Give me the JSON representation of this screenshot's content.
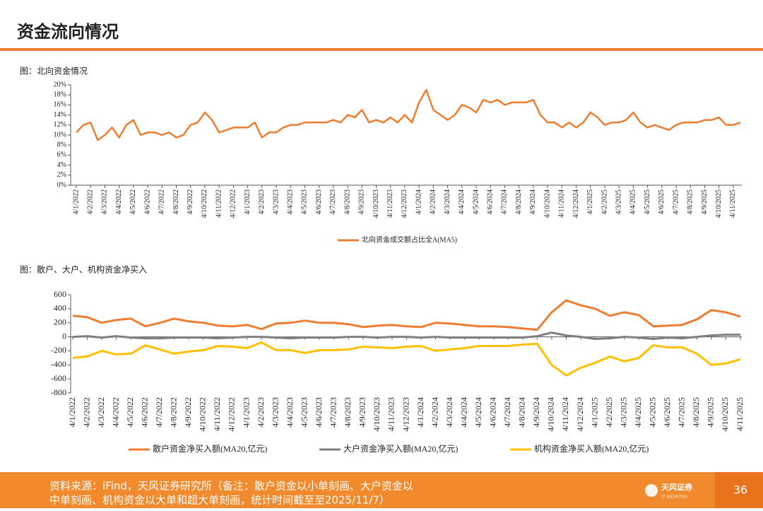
{
  "header": {
    "title": "资金流向情况"
  },
  "footer": {
    "lines": [
      "资料来源：iFind，天风证券研究所（备注：散户资金以小单刻画、大户资金以",
      "中单刻画、机构资金以大单和超大单刻画，统计时间截至至2025/11/7）"
    ],
    "logo": "天风证券",
    "logo_sub": "TF SECURITIES",
    "page": "36"
  },
  "chart_data": [
    {
      "type": "line",
      "title": "图：北向资金情况",
      "categories": [
        "4/1/2022",
        null,
        "4/2/2022",
        null,
        "4/3/2022",
        null,
        "4/4/2022",
        null,
        "4/5/2022",
        null,
        "4/6/2022",
        null,
        "4/7/2022",
        null,
        "4/8/2022",
        null,
        "4/9/2022",
        null,
        "4/10/2022",
        null,
        "4/11/2022",
        null,
        "4/12/2022",
        null,
        "4/1/2023",
        null,
        "4/2/2023",
        null,
        "4/3/2023",
        null,
        "4/4/2023",
        null,
        "4/5/2023",
        null,
        "4/6/2023",
        null,
        "4/7/2023",
        null,
        "4/8/2023",
        null,
        "4/9/2023",
        null,
        "4/10/2023",
        null,
        "4/11/2023",
        null,
        "4/12/2023",
        null,
        "4/1/2024",
        null,
        "4/2/2024",
        null,
        "4/3/2024",
        null,
        "4/4/2024",
        null,
        "4/5/2024",
        null,
        "4/6/2024",
        null,
        "4/7/2024",
        null,
        "4/8/2024",
        null,
        "4/9/2024",
        null,
        "4/10/2024",
        null,
        "4/11/2024",
        null,
        "4/12/2024",
        null,
        "4/1/2025",
        null,
        "4/2/2025",
        null,
        "4/3/2025",
        null,
        "4/4/2025",
        null,
        "4/5/2025",
        null,
        "4/6/2025",
        null,
        "4/7/2025",
        null,
        "4/8/2025",
        null,
        "4/9/2025",
        null,
        "4/10/2025",
        null,
        "4/11/2025",
        null
      ],
      "series": [
        {
          "name": "北向资金成交额占比全A(MA5)",
          "color": "#ED7D31",
          "values": [
            10.5,
            12,
            12.5,
            9,
            10,
            11.5,
            9.5,
            12,
            13,
            10,
            10.5,
            10.5,
            10,
            10.5,
            9.5,
            10,
            12,
            12.5,
            14.5,
            13,
            10.5,
            11,
            11.5,
            11.5,
            11.5,
            12.5,
            9.5,
            10.5,
            10.5,
            11.5,
            12,
            12,
            12.5,
            12.5,
            12.5,
            12.5,
            13,
            12.5,
            14,
            13.5,
            15,
            12.5,
            13,
            12.5,
            13.5,
            12.5,
            14,
            12.5,
            16.5,
            19,
            15,
            14,
            13,
            14,
            16,
            15.5,
            14.5,
            17,
            16.5,
            17,
            16,
            16.5,
            16.5,
            16.5,
            17,
            14,
            12.5,
            12.5,
            11.5,
            12.5,
            11.5,
            12.5,
            14.5,
            13.5,
            12,
            12.5,
            12.5,
            13,
            14.5,
            12.5,
            11.5,
            12,
            11.5,
            11,
            12,
            12.5,
            12.5,
            12.5,
            13,
            13,
            13.5,
            12,
            12,
            12.5
          ]
        }
      ],
      "ylim": [
        0,
        20
      ],
      "yticks": [
        {
          "value": 0,
          "label": "0%"
        },
        {
          "value": 2,
          "label": "2%"
        },
        {
          "value": 4,
          "label": "4%"
        },
        {
          "value": 6,
          "label": "6%"
        },
        {
          "value": 8,
          "label": "8%"
        },
        {
          "value": 10,
          "label": "10%"
        },
        {
          "value": 12,
          "label": "12%"
        },
        {
          "value": 14,
          "label": "14%"
        },
        {
          "value": 16,
          "label": "16%"
        },
        {
          "value": 18,
          "label": "18%"
        },
        {
          "value": 20,
          "label": "20%"
        }
      ],
      "grid": false,
      "legend": "bottom"
    },
    {
      "type": "line",
      "title": "图：散户、大户、机构资金净买入",
      "categories": [
        "4/1/2022",
        "4/2/2022",
        "4/3/2022",
        "4/4/2022",
        "4/5/2022",
        "4/6/2022",
        "4/7/2022",
        "4/8/2022",
        "4/9/2022",
        "4/10/2022",
        "4/11/2022",
        "4/12/2022",
        "4/1/2023",
        "4/2/2023",
        "4/3/2023",
        "4/4/2023",
        "4/5/2023",
        "4/6/2023",
        "4/7/2023",
        "4/8/2023",
        "4/9/2023",
        "4/10/2023",
        "4/11/2023",
        "4/12/2023",
        "4/1/2024",
        "4/2/2024",
        "4/3/2024",
        "4/4/2024",
        "4/5/2024",
        "4/6/2024",
        "4/7/2024",
        "4/8/2024",
        "4/9/2024",
        "4/10/2024",
        "4/11/2024",
        "4/12/2024",
        "4/1/2025",
        "4/2/2025",
        "4/3/2025",
        "4/4/2025",
        "4/5/2025",
        "4/6/2025",
        "4/7/2025",
        "4/8/2025",
        "4/9/2025",
        "4/10/2025",
        "4/11/2025"
      ],
      "series": [
        {
          "name": "散户资金净买入额(MA20,亿元)",
          "color": "#ED7D31",
          "values": [
            300,
            280,
            200,
            240,
            260,
            150,
            200,
            260,
            220,
            200,
            160,
            150,
            170,
            110,
            190,
            200,
            230,
            200,
            200,
            180,
            140,
            160,
            170,
            150,
            140,
            200,
            190,
            170,
            150,
            150,
            140,
            120,
            100,
            350,
            520,
            450,
            400,
            300,
            350,
            310,
            150,
            160,
            170,
            250,
            380,
            350,
            290
          ]
        },
        {
          "name": "大户资金净买入额(MA20,亿元)",
          "color": "#7F7F7F",
          "values": [
            0,
            10,
            -10,
            10,
            -10,
            -20,
            -20,
            -10,
            -10,
            -10,
            -20,
            -10,
            0,
            0,
            -10,
            -20,
            -10,
            -10,
            -10,
            0,
            0,
            -10,
            0,
            0,
            -10,
            0,
            -10,
            -10,
            -10,
            -10,
            -10,
            -10,
            10,
            60,
            20,
            0,
            -30,
            -20,
            0,
            -10,
            -30,
            -10,
            -20,
            0,
            20,
            30,
            30
          ]
        },
        {
          "name": "机构资金净买入额(MA20,亿元)",
          "color": "#FFC000",
          "values": [
            -300,
            -280,
            -200,
            -250,
            -240,
            -120,
            -180,
            -240,
            -210,
            -190,
            -130,
            -140,
            -160,
            -80,
            -190,
            -190,
            -230,
            -190,
            -190,
            -180,
            -140,
            -150,
            -160,
            -140,
            -130,
            -200,
            -180,
            -160,
            -130,
            -130,
            -130,
            -110,
            -100,
            -400,
            -550,
            -440,
            -370,
            -280,
            -350,
            -300,
            -120,
            -150,
            -150,
            -240,
            -400,
            -380,
            -320
          ]
        }
      ],
      "ylim": [
        -800,
        600
      ],
      "yticks": [
        -800,
        -600,
        -400,
        -200,
        0,
        200,
        400,
        600
      ],
      "grid": false,
      "legend": "bottom"
    }
  ]
}
